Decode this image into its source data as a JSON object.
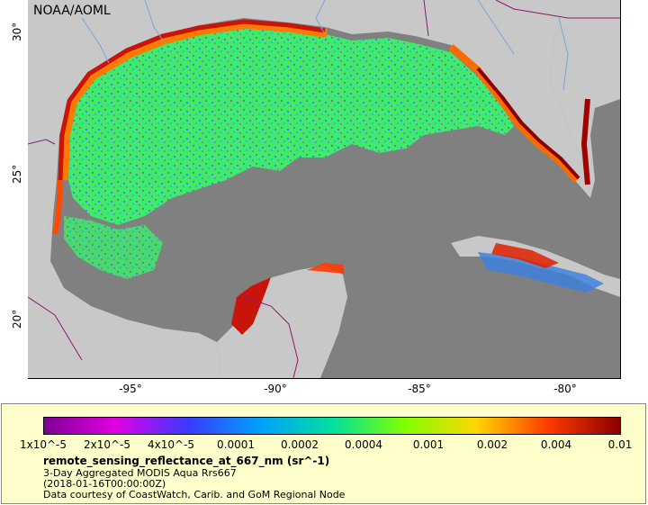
{
  "map": {
    "credit": "NOAA/AOML",
    "lat_labels": [
      "30°",
      "25°",
      "20°"
    ],
    "lon_labels": [
      "-95°",
      "-90°",
      "-85°",
      "-80°"
    ],
    "colors": {
      "land": "#c8c8c8",
      "ocean_nodata": "#808080",
      "border": "#8b1a6b",
      "river": "#7aa6d6"
    }
  },
  "legend": {
    "ticks": [
      "1x10^-5",
      "2x10^-5",
      "4x10^-5",
      "0.0001",
      "0.0002",
      "0.0004",
      "0.001",
      "0.002",
      "0.004",
      "0.01"
    ],
    "title": "remote_sensing_reflectance_at_667_nm (sr^-1)",
    "line1": "3-Day Aggregated MODIS Aqua Rrs667",
    "line2": "(2018-01-16T00:00:00Z)",
    "line3": "Data courtesy of CoastWatch, Carib. and GoM Regional Node",
    "colormap": [
      "#7e0093",
      "#e000e6",
      "#3a3aff",
      "#00a0ff",
      "#00e0a0",
      "#7fff00",
      "#ffd700",
      "#ff3a00",
      "#8b0000"
    ]
  }
}
